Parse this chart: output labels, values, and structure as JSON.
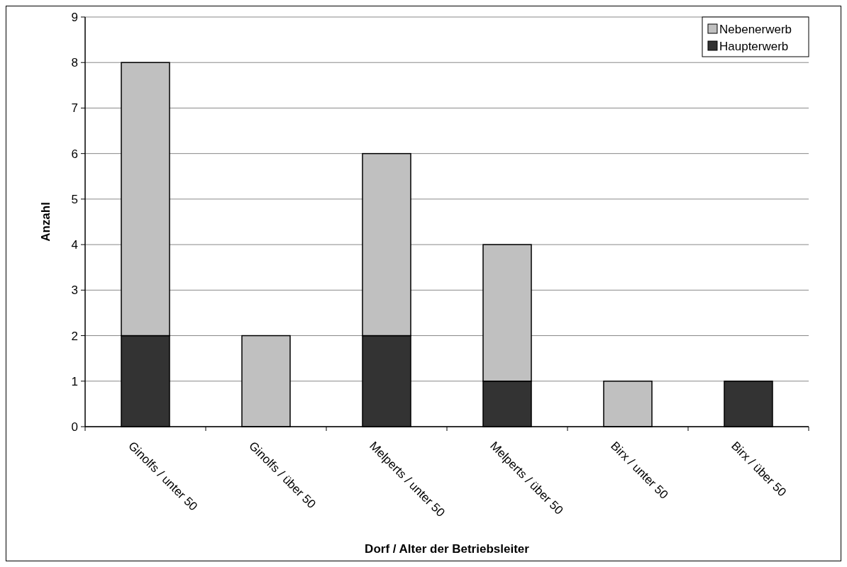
{
  "chart_data": {
    "type": "bar",
    "stacked": true,
    "xlabel": "Dorf / Alter der Betriebsleiter",
    "ylabel": "Anzahl",
    "categories": [
      "Ginolfs / unter 50",
      "Ginolfs / über 50",
      "Melperts / unter 50",
      "Melperts / über 50",
      "Birx / unter 50",
      "Birx / über 50"
    ],
    "series": [
      {
        "name": "Haupterwerb",
        "color": "#333333",
        "values": [
          2,
          0,
          2,
          1,
          0,
          1
        ]
      },
      {
        "name": "Nebenerwerb",
        "color": "#c0c0c0",
        "values": [
          6,
          2,
          4,
          3,
          1,
          0
        ]
      }
    ],
    "ylim": [
      0,
      9
    ],
    "yticks": [
      0,
      1,
      2,
      3,
      4,
      5,
      6,
      7,
      8,
      9
    ],
    "grid": "y",
    "legend": "top right"
  }
}
